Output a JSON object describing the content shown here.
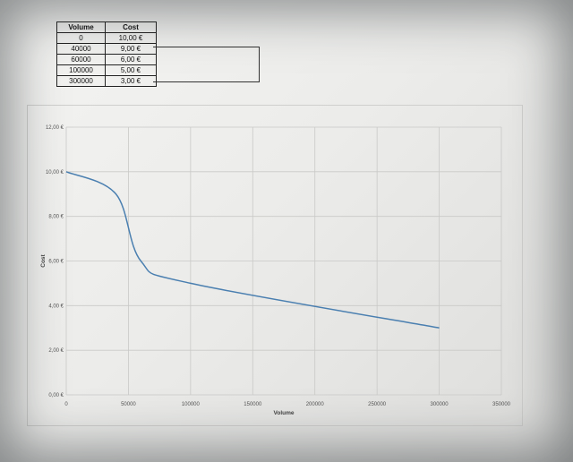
{
  "table": {
    "headers": [
      "Volume",
      "Cost"
    ],
    "rows": [
      [
        "0",
        "10,00 €"
      ],
      [
        "40000",
        "9,00 €"
      ],
      [
        "60000",
        "6,00 €"
      ],
      [
        "100000",
        "5,00 €"
      ],
      [
        "300000",
        "3,00 €"
      ]
    ]
  },
  "chart_data": {
    "type": "line",
    "xlabel": "Volume",
    "ylabel": "Cost",
    "xlim": [
      0,
      350000
    ],
    "ylim": [
      0,
      12
    ],
    "x_ticks": [
      "0",
      "50000",
      "100000",
      "150000",
      "200000",
      "250000",
      "300000",
      "350000"
    ],
    "y_ticks": [
      "0,00 €",
      "2,00 €",
      "4,00 €",
      "6,00 €",
      "8,00 €",
      "10,00 €",
      "12,00 €"
    ],
    "grid": true,
    "series": [
      {
        "x": [
          0,
          40000,
          60000,
          100000,
          300000
        ],
        "y": [
          10,
          9,
          6,
          5,
          3
        ],
        "color": "#4a7fb0",
        "smooth": true
      }
    ]
  }
}
